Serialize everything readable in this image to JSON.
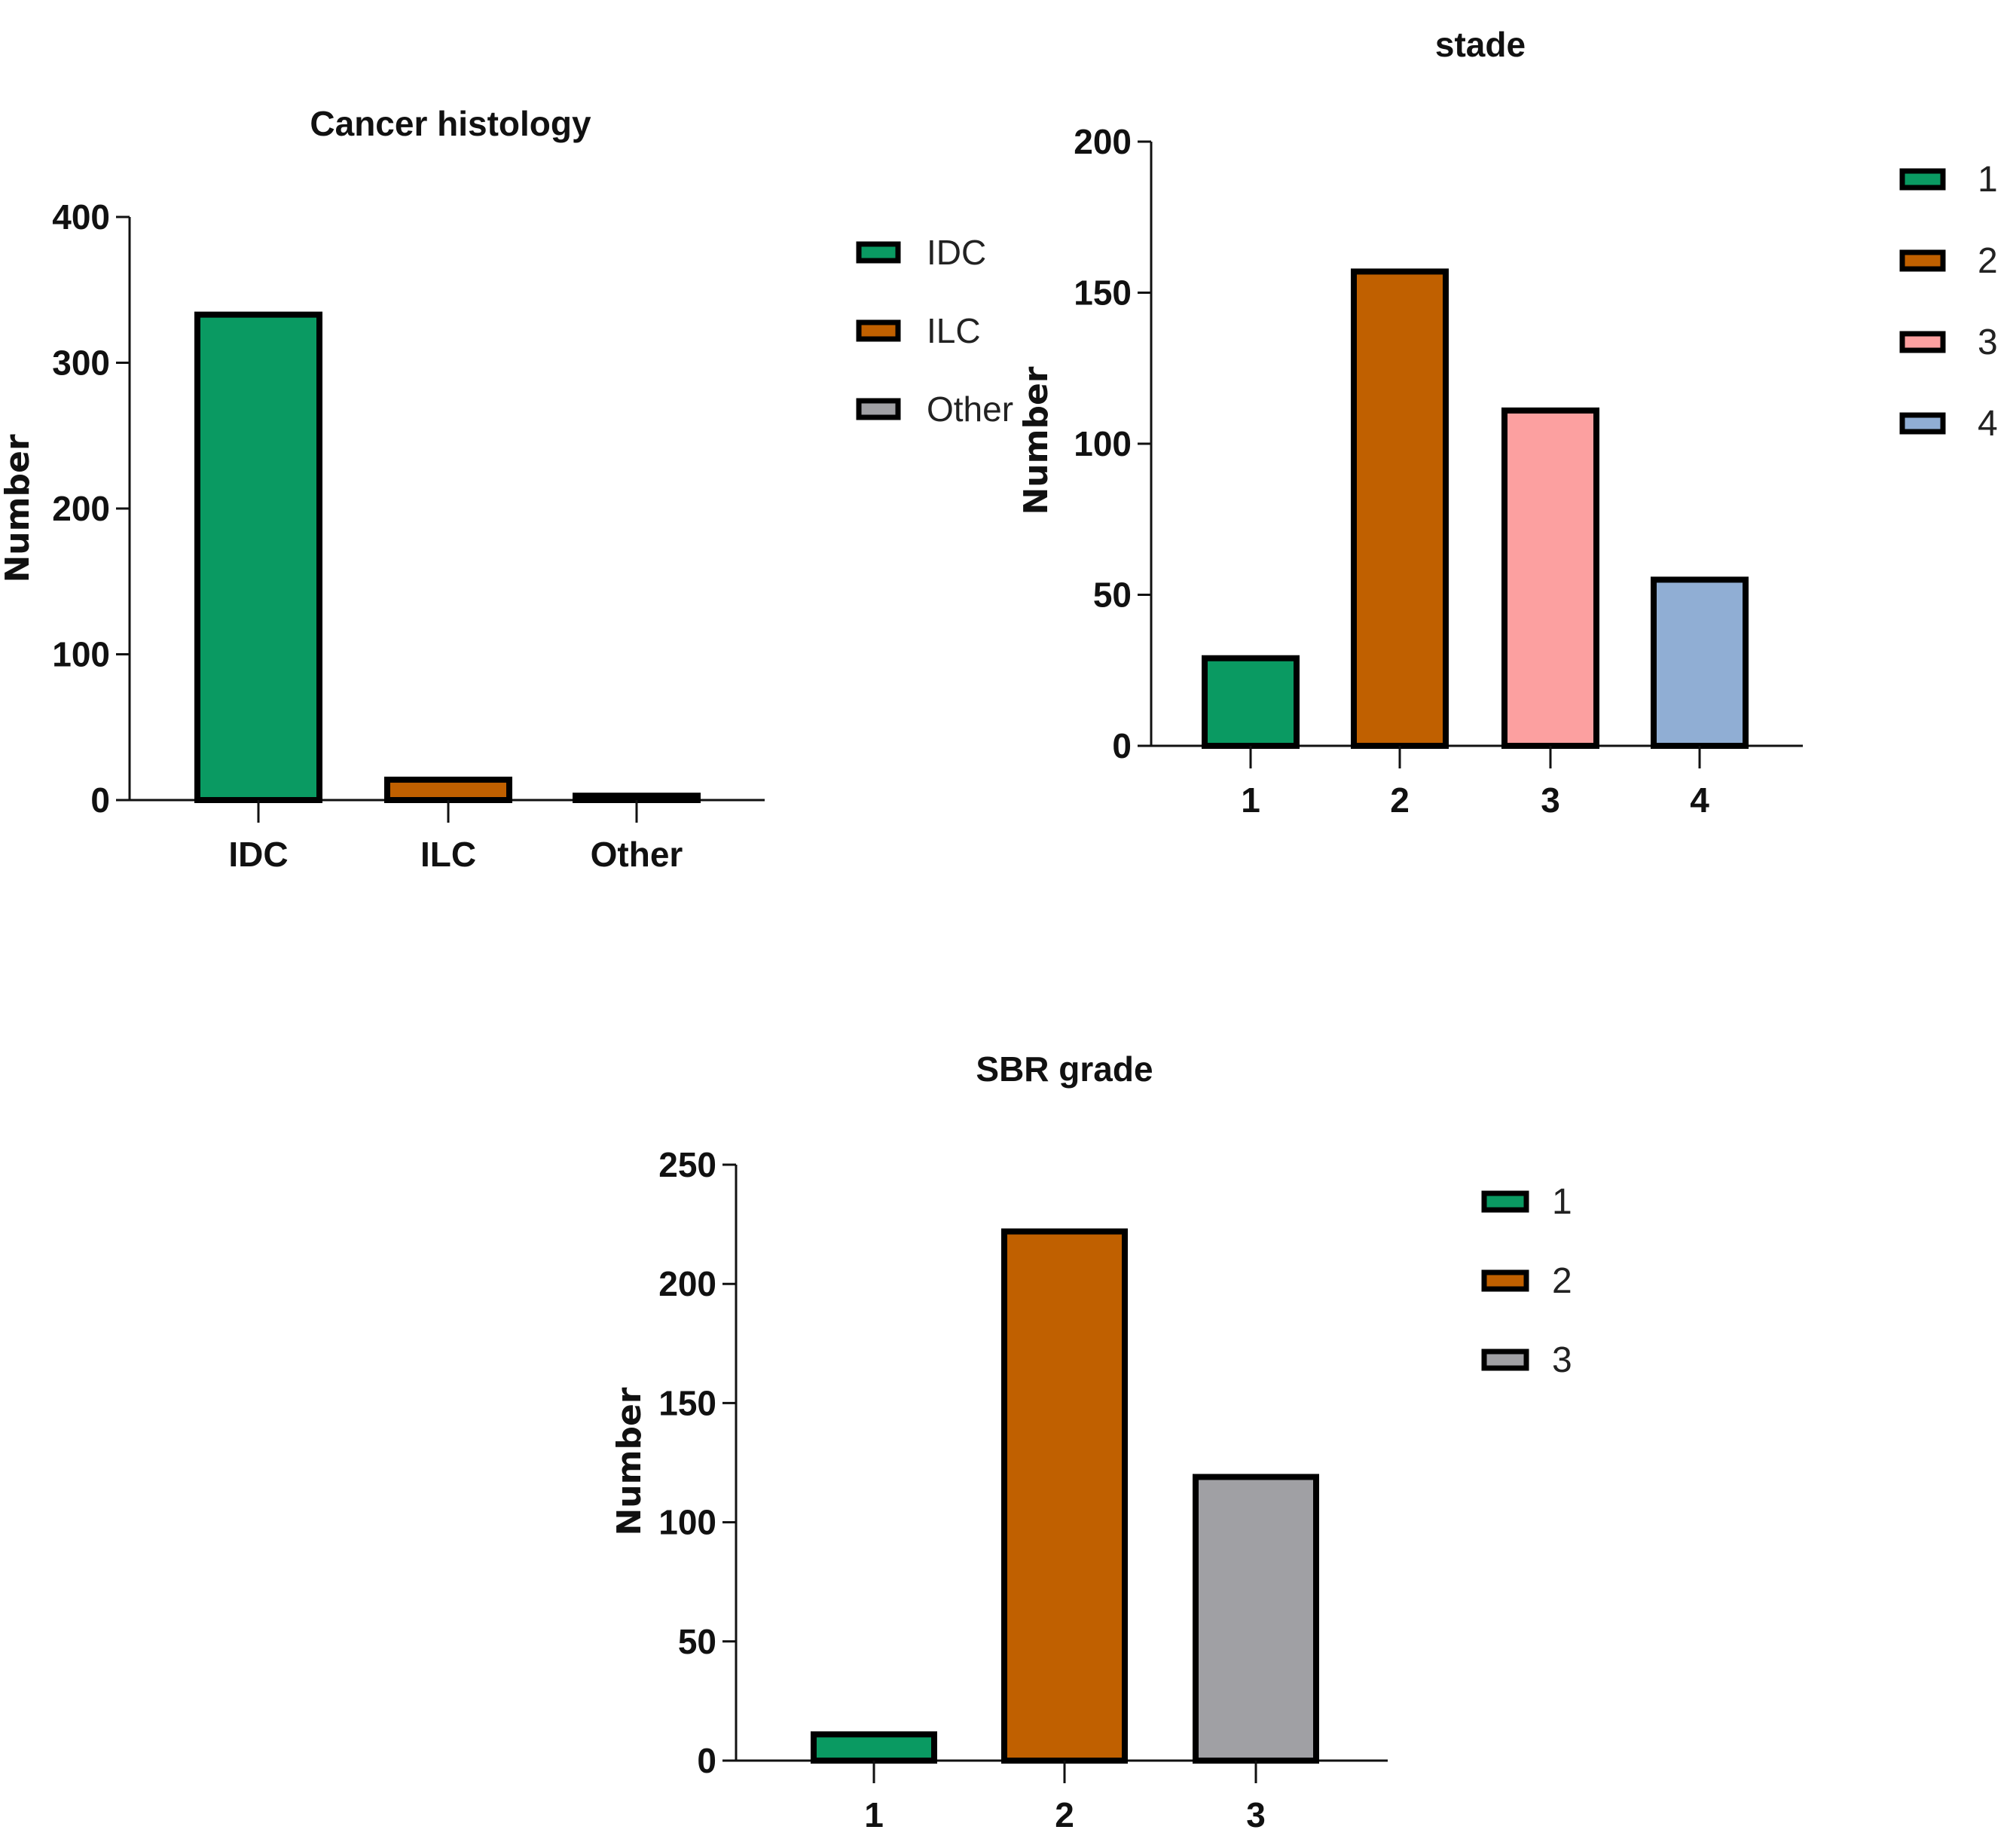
{
  "chart_data": [
    {
      "type": "bar",
      "title": "Cancer histology",
      "categories": [
        "IDC",
        "ILC",
        "Other"
      ],
      "values": [
        333,
        14,
        3
      ],
      "colors": [
        "#0a9a62",
        "#c06000",
        "#a0a0a4"
      ],
      "ylabel": "Number",
      "xlabel": "",
      "ylim": [
        0,
        400
      ],
      "yticks": [
        0,
        100,
        200,
        300,
        400
      ],
      "legend": [
        "IDC",
        "ILC",
        "Other"
      ],
      "legend_position": "right",
      "grid": false
    },
    {
      "type": "bar",
      "title": "stade",
      "categories": [
        "1",
        "2",
        "3",
        "4"
      ],
      "values": [
        29,
        157,
        111,
        55
      ],
      "colors": [
        "#0a9a62",
        "#c06000",
        "#fca0a0",
        "#90aed4"
      ],
      "ylabel": "Number",
      "xlabel": "",
      "ylim": [
        0,
        200
      ],
      "yticks": [
        0,
        50,
        100,
        150,
        200
      ],
      "legend": [
        "1",
        "2",
        "3",
        "4"
      ],
      "legend_position": "right",
      "grid": false
    },
    {
      "type": "bar",
      "title": "SBR grade",
      "categories": [
        "1",
        "2",
        "3"
      ],
      "values": [
        11,
        222,
        119
      ],
      "colors": [
        "#0a9a62",
        "#c06000",
        "#a0a0a4"
      ],
      "ylabel": "Number",
      "xlabel": "",
      "ylim": [
        0,
        250
      ],
      "yticks": [
        0,
        50,
        100,
        150,
        200,
        250
      ],
      "legend": [
        "1",
        "2",
        "3"
      ],
      "legend_position": "right",
      "grid": false
    }
  ]
}
